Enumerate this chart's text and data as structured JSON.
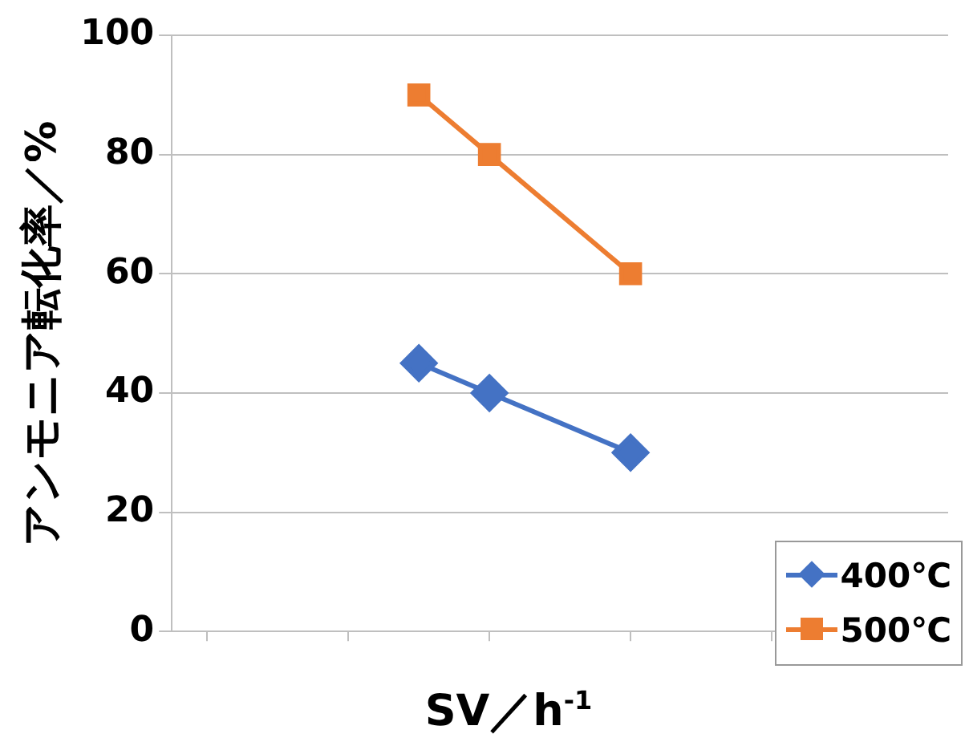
{
  "chart_data": {
    "type": "line",
    "xlabel": "SV／h$^{-1}$",
    "ylabel": "アンモニア転化率／%",
    "categories": [
      null,
      null,
      null,
      null,
      null,
      null,
      null,
      null,
      null,
      null,
      null
    ],
    "series": [
      {
        "name": "400℃",
        "color": "#4472c4",
        "marker": "diamond",
        "values": [
          null,
          null,
          null,
          45,
          40,
          null,
          30,
          null,
          null,
          null,
          null
        ]
      },
      {
        "name": "500℃",
        "color": "#ed7d31",
        "marker": "square",
        "values": [
          null,
          null,
          null,
          90,
          80,
          null,
          60,
          null,
          null,
          null,
          null
        ]
      }
    ],
    "ylim": [
      0,
      100
    ],
    "yticks": [
      0,
      20,
      40,
      60,
      80,
      100
    ],
    "grid": "y",
    "legend": "bottom right"
  }
}
